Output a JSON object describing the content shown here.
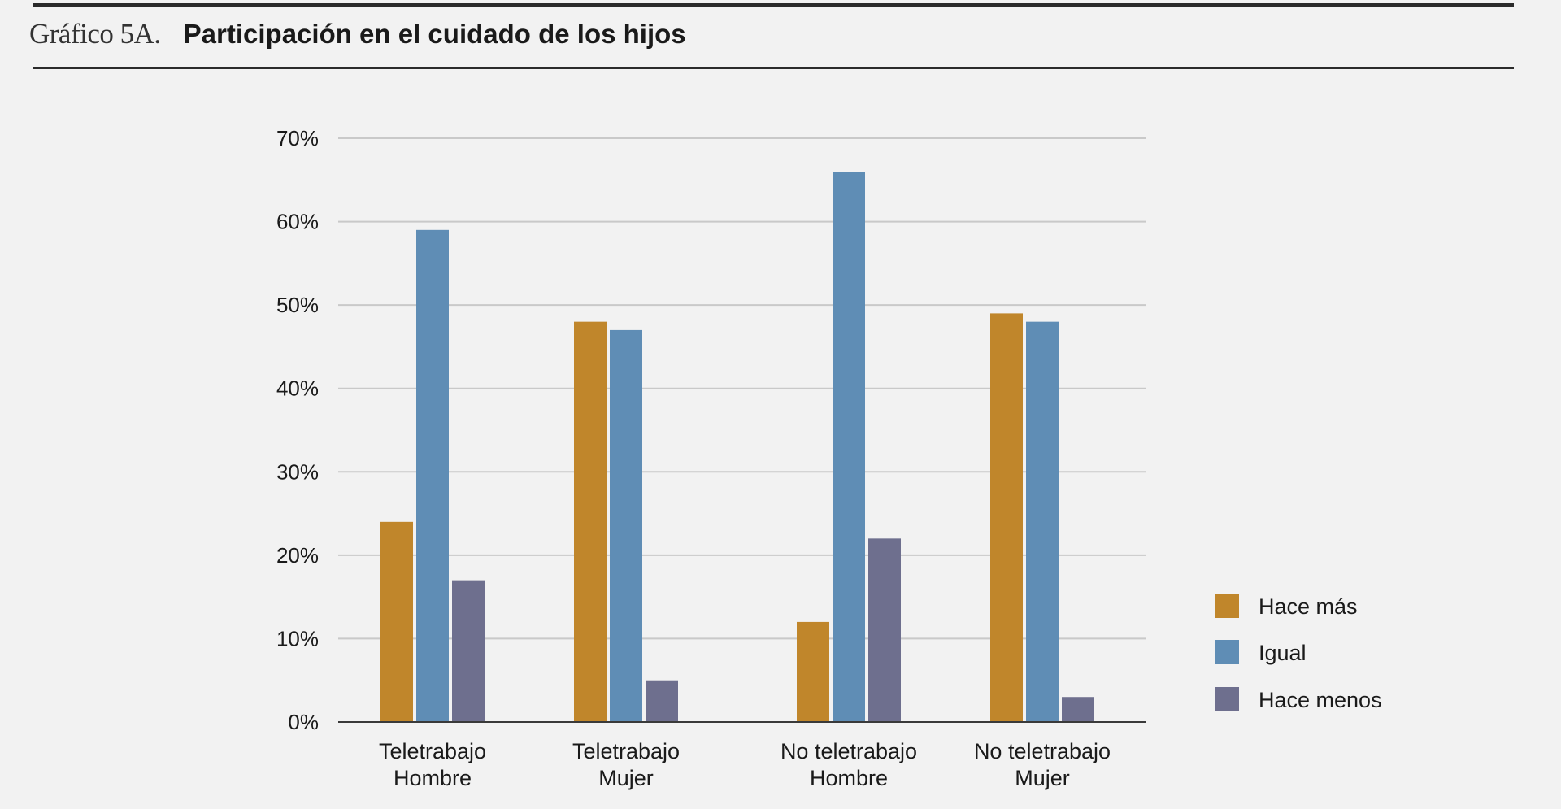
{
  "header": {
    "label": "Gráfico 5A.",
    "title": "Participación en el cuidado de los hijos"
  },
  "chart_data": {
    "type": "bar",
    "title": "Participación en el cuidado de los hijos",
    "xlabel": "",
    "ylabel": "",
    "ylim": [
      0,
      70
    ],
    "y_ticks": [
      "0%",
      "10%",
      "20%",
      "30%",
      "40%",
      "50%",
      "60%",
      "70%"
    ],
    "grid": true,
    "legend_position": "right",
    "categories": [
      [
        "Teletrabajo",
        "Hombre"
      ],
      [
        "Teletrabajo",
        "Mujer"
      ],
      [
        "No teletrabajo",
        "Hombre"
      ],
      [
        "No teletrabajo",
        "Mujer"
      ]
    ],
    "series": [
      {
        "name": "Hace más",
        "color": "#c0862b",
        "values": [
          24,
          48,
          12,
          49
        ]
      },
      {
        "name": "Igual",
        "color": "#5f8db5",
        "values": [
          59,
          47,
          66,
          48
        ]
      },
      {
        "name": "Hace menos",
        "color": "#6e6f8e",
        "values": [
          17,
          5,
          22,
          3
        ]
      }
    ]
  }
}
